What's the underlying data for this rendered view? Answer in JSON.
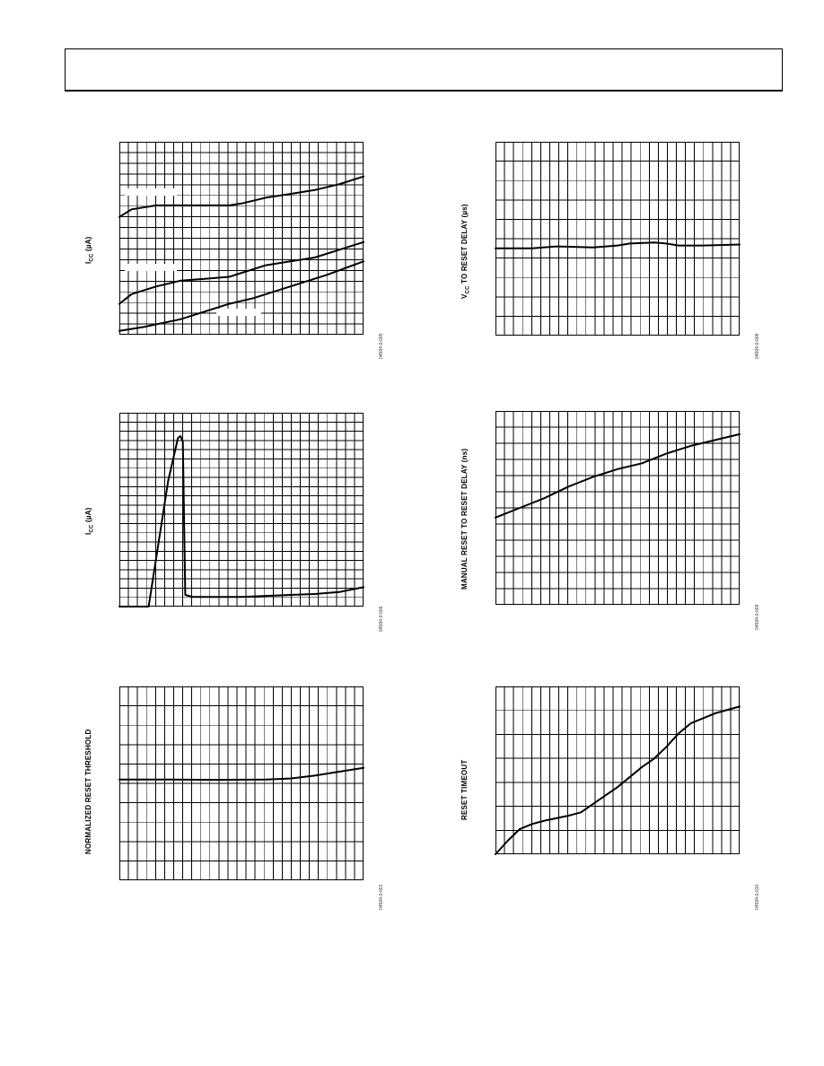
{
  "chart_data": [
    {
      "id": "c1",
      "type": "line",
      "ylabel": "I",
      "ylabel_sub": "CC",
      "ylabel_unit": "(µA)",
      "fig_code": "04594-0-005",
      "grid": true,
      "xlim": [
        0,
        100
      ],
      "ylim": [
        0,
        100
      ],
      "series": [
        {
          "x": [
            0,
            5,
            15,
            35,
            45,
            50,
            60,
            70,
            80,
            90,
            100
          ],
          "y": [
            61,
            65,
            67,
            67,
            67,
            68,
            71,
            73,
            75,
            78,
            82
          ]
        },
        {
          "x": [
            0,
            5,
            15,
            25,
            35,
            45,
            60,
            70,
            80,
            90,
            100
          ],
          "y": [
            16,
            21,
            25,
            28,
            29,
            30,
            36,
            38,
            40,
            44,
            48
          ]
        },
        {
          "x": [
            0,
            10,
            25,
            35,
            45,
            55,
            65,
            75,
            85,
            100
          ],
          "y": [
            2,
            4,
            8,
            12,
            16,
            19,
            23,
            27,
            31,
            38
          ]
        }
      ]
    },
    {
      "id": "c2",
      "type": "line",
      "ylabel": "I",
      "ylabel_sub": "CC",
      "ylabel_unit": "(µA)",
      "fig_code": "04594-0-006",
      "grid": true,
      "xlim": [
        0,
        100
      ],
      "ylim": [
        0,
        100
      ],
      "series": [
        {
          "x": [
            0,
            1,
            2,
            4,
            8,
            12,
            20,
            24,
            25,
            26,
            27,
            30,
            40,
            50,
            60,
            70,
            80,
            90,
            100
          ],
          "y": [
            0,
            0,
            0,
            0,
            0,
            0,
            65,
            87,
            88,
            85,
            6,
            5,
            5,
            5,
            5.5,
            6,
            6.5,
            7.5,
            10
          ]
        }
      ]
    },
    {
      "id": "c3",
      "type": "line",
      "ylabel": "NORMALIZED RESET THRESHOLD",
      "fig_code": "04594-0-001",
      "grid": true,
      "xlim": [
        0,
        100
      ],
      "ylim": [
        0,
        100
      ],
      "series": [
        {
          "x": [
            0,
            20,
            40,
            60,
            70,
            80,
            90,
            100
          ],
          "y": [
            52,
            52,
            51.8,
            52,
            52.5,
            54,
            56,
            58
          ]
        }
      ]
    },
    {
      "id": "c4",
      "type": "line",
      "ylabel": "V",
      "ylabel_sub": "CC",
      "ylabel_unit": " TO RESET DELAY (µs)",
      "fig_code": "04594-0-008",
      "grid": true,
      "xlim": [
        0,
        100
      ],
      "ylim": [
        0,
        100
      ],
      "series": [
        {
          "x": [
            0,
            15,
            25,
            40,
            50,
            55,
            65,
            70,
            75,
            85,
            100
          ],
          "y": [
            45,
            45,
            46,
            45.5,
            46.5,
            47.5,
            48,
            47.5,
            46.5,
            46.5,
            47
          ]
        }
      ]
    },
    {
      "id": "c5",
      "type": "line",
      "ylabel": "MANUAL RESET TO RESET DELAY (ns)",
      "fig_code": "04594-0-009",
      "grid": true,
      "xlim": [
        0,
        100
      ],
      "ylim": [
        0,
        100
      ],
      "series": [
        {
          "x": [
            0,
            10,
            20,
            30,
            40,
            50,
            60,
            70,
            80,
            90,
            100
          ],
          "y": [
            45,
            50,
            55,
            61,
            66,
            70,
            73,
            78,
            82,
            85,
            88
          ]
        }
      ]
    },
    {
      "id": "c6",
      "type": "line",
      "ylabel": "RESET TIMEOUT",
      "fig_code": "04594-0-010",
      "grid": true,
      "xlim": [
        0,
        100
      ],
      "ylim": [
        0,
        100
      ],
      "series": [
        {
          "x": [
            0,
            5,
            10,
            15,
            20,
            30,
            35,
            40,
            50,
            60,
            65,
            70,
            75,
            80,
            90,
            100
          ],
          "y": [
            0,
            8,
            15,
            18,
            20,
            23,
            25,
            30,
            40,
            52,
            57,
            64,
            72,
            78,
            84,
            88
          ]
        }
      ]
    }
  ]
}
